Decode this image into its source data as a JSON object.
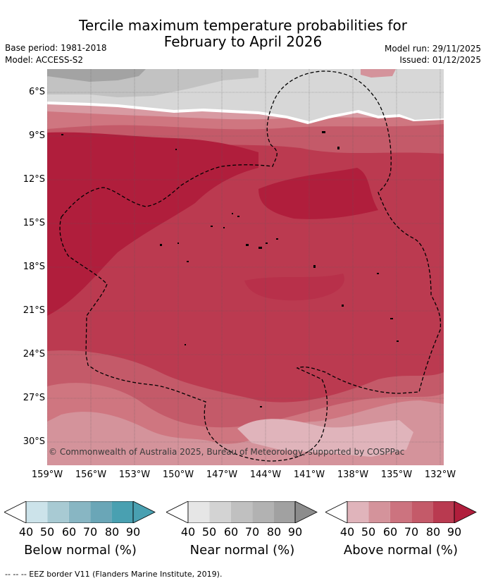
{
  "title_line1": "Tercile maximum temperature probabilities for",
  "title_line2": "February to April 2026",
  "base_period": "Base period: 1981-2018",
  "model": "Model: ACCESS-S2",
  "model_run": "Model run: 29/11/2025",
  "issued": "Issued: 01/12/2025",
  "copyright": "© Commonwealth of Australia 2025, Bureau of Meteorology, supported by COSPPac",
  "lat_labels": [
    "6°S",
    "9°S",
    "12°S",
    "15°S",
    "18°S",
    "21°S",
    "24°S",
    "27°S",
    "30°S"
  ],
  "lon_labels": [
    "159°W",
    "156°W",
    "153°W",
    "150°W",
    "147°W",
    "144°W",
    "141°W",
    "138°W",
    "135°W",
    "132°W"
  ],
  "colorbars": [
    {
      "title": "Below normal (%)",
      "ticks": [
        "40",
        "50",
        "60",
        "70",
        "80",
        "90"
      ],
      "colors": [
        "#cce3ea",
        "#a8cad3",
        "#88b6c3",
        "#6aa6b7",
        "#49a0b1"
      ]
    },
    {
      "title": "Near normal (%)",
      "ticks": [
        "40",
        "50",
        "60",
        "70",
        "80",
        "90"
      ],
      "colors": [
        "#e6e6e6",
        "#d3d3d3",
        "#c0c0c0",
        "#b2b2b2",
        "#a1a1a1",
        "#8c8c8c"
      ]
    },
    {
      "title": "Above normal (%)",
      "ticks": [
        "40",
        "50",
        "60",
        "70",
        "80",
        "90"
      ],
      "colors": [
        "#e0b4bb",
        "#d4939b",
        "#cc737f",
        "#c45a69",
        "#b93a50",
        "#b01e3c"
      ]
    }
  ],
  "footer": "-- -- -- EEZ border V11 (Flanders Marine Institute, 2019).",
  "colors": {
    "above_90": "#b01e3c",
    "above_80": "#bb3a50",
    "above_70": "#c65a69",
    "above_60": "#cf7680",
    "above_50": "#d4939b",
    "above_40": "#e0b4bb",
    "near_50": "#d7d7d7",
    "near_60": "#c2c2c2",
    "near_70": "#a3a3a3"
  }
}
